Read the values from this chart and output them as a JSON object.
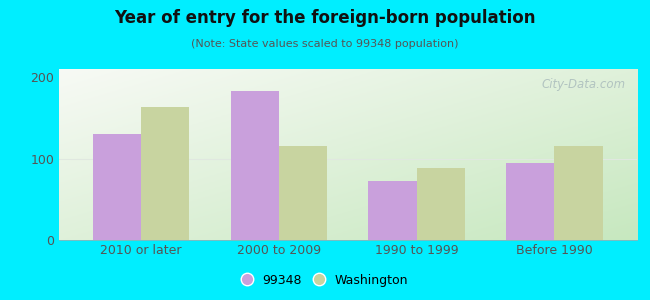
{
  "title": "Year of entry for the foreign-born population",
  "subtitle": "(Note: State values scaled to 99348 population)",
  "categories": [
    "2010 or later",
    "2000 to 2009",
    "1990 to 1999",
    "Before 1990"
  ],
  "values_99348": [
    130,
    183,
    72,
    95
  ],
  "values_washington": [
    163,
    115,
    88,
    115
  ],
  "bar_color_99348": "#c9a0dc",
  "bar_color_washington": "#c8d4a0",
  "background_outer": "#00eeff",
  "background_inner_top": "#f5f8f0",
  "background_inner_bottom": "#d8edd8",
  "ylim": [
    0,
    210
  ],
  "yticks": [
    0,
    100,
    200
  ],
  "legend_label_99348": "99348",
  "legend_label_washington": "Washington",
  "bar_width": 0.35,
  "grid_color": "#e0e8e0",
  "watermark": "City-Data.com",
  "title_color": "#111111",
  "subtitle_color": "#555555",
  "tick_color": "#555555"
}
